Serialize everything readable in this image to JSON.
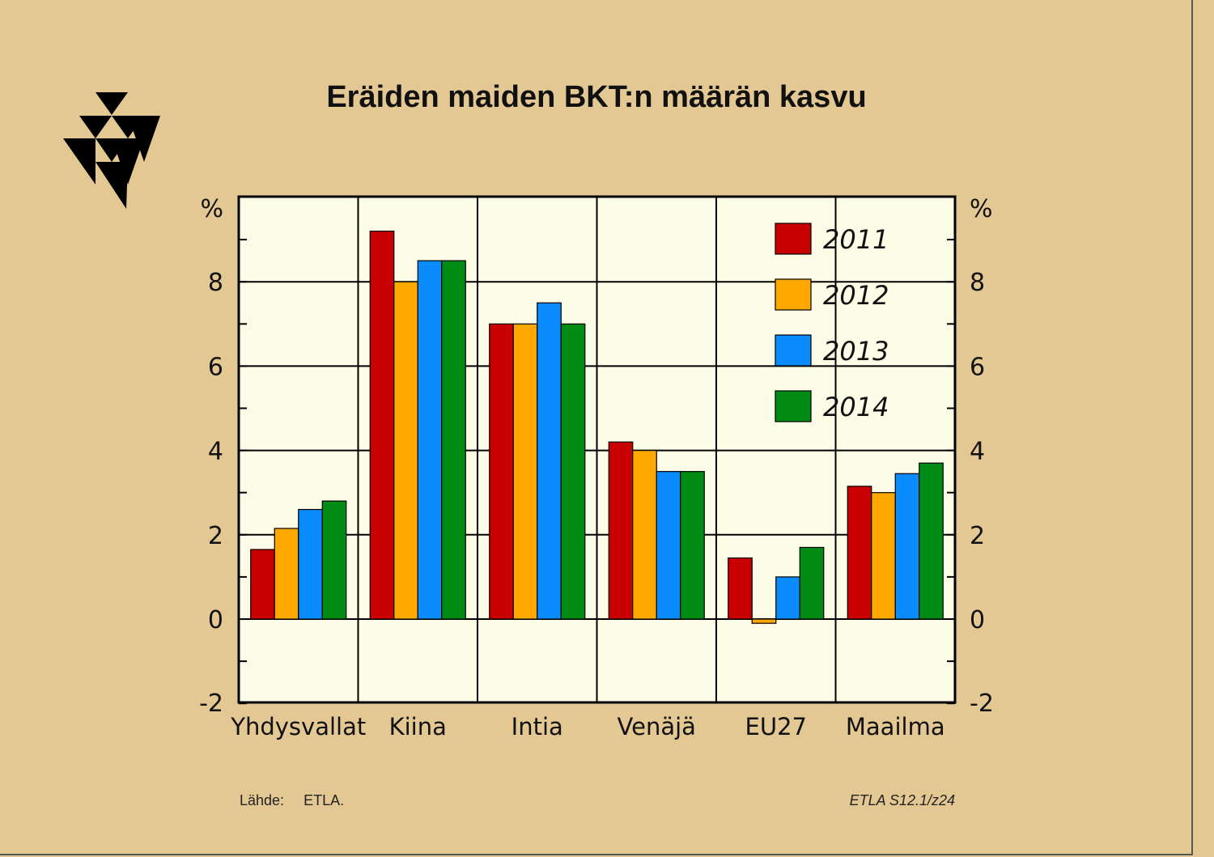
{
  "colors": {
    "background": "#e4c893",
    "plot_background": "#fdfce6",
    "series": [
      "#c80000",
      "#ffa800",
      "#0a8cff",
      "#008c14"
    ]
  },
  "logo": {
    "icon": "etla-triangles-logo"
  },
  "footer": {
    "source_label": "Lähde:",
    "source_value": "ETLA.",
    "code": "ETLA S12.1/z24"
  },
  "chart_data": {
    "type": "bar",
    "title": "Eräiden maiden BKT:n määrän kasvu",
    "ylabel_left": "%",
    "ylabel_right": "%",
    "ylim": [
      -2,
      9.5
    ],
    "yticks": [
      -2,
      0,
      2,
      4,
      6,
      8
    ],
    "yticks_minor": [
      -1,
      1,
      3,
      5,
      7,
      9
    ],
    "grid": true,
    "legend_position": "top-right",
    "categories": [
      "Yhdysvallat",
      "Kiina",
      "Intia",
      "Venäjä",
      "EU27",
      "Maailma"
    ],
    "series": [
      {
        "name": "2011",
        "values": [
          1.65,
          9.2,
          7.0,
          4.2,
          1.45,
          3.15
        ]
      },
      {
        "name": "2012",
        "values": [
          2.15,
          8.0,
          7.0,
          4.0,
          -0.1,
          3.0
        ]
      },
      {
        "name": "2013",
        "values": [
          2.6,
          8.5,
          7.5,
          3.5,
          1.0,
          3.45
        ]
      },
      {
        "name": "2014",
        "values": [
          2.8,
          8.5,
          7.0,
          3.5,
          1.7,
          3.7
        ]
      }
    ]
  }
}
